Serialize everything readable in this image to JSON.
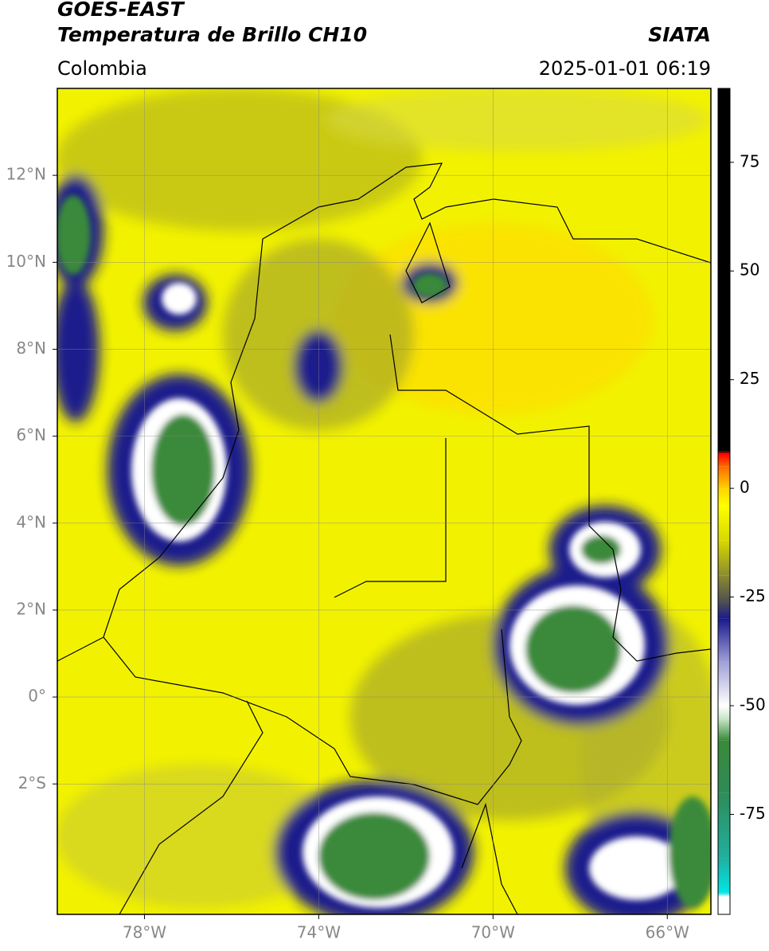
{
  "map": {
    "title": "GOES-EAST",
    "subtitle": "Temperatura de Brillo CH10",
    "source": "SIATA",
    "region": "Colombia",
    "datetime": "2025-01-01 06:19",
    "xlim": [
      -80,
      -65
    ],
    "ylim": [
      -5,
      14
    ],
    "xticks": [
      {
        "value": -78,
        "label": "78°W"
      },
      {
        "value": -74,
        "label": "74°W"
      },
      {
        "value": -70,
        "label": "70°W"
      },
      {
        "value": -66,
        "label": "66°W"
      }
    ],
    "yticks": [
      {
        "value": 12,
        "label": "12°N"
      },
      {
        "value": 10,
        "label": "10°N"
      },
      {
        "value": 8,
        "label": "8°N"
      },
      {
        "value": 6,
        "label": "6°N"
      },
      {
        "value": 4,
        "label": "4°N"
      },
      {
        "value": 2,
        "label": "2°N"
      },
      {
        "value": 0,
        "label": "0°"
      },
      {
        "value": -2,
        "label": "2°S"
      }
    ],
    "grid": true,
    "colorbar": {
      "lim": [
        -98,
        92
      ],
      "ticks": [
        75,
        50,
        25,
        0,
        -25,
        -50,
        -75
      ],
      "stops": [
        {
          "value": -98,
          "color": "#ffffff"
        },
        {
          "value": -94,
          "color": "#ffffff"
        },
        {
          "value": -93,
          "color": "#00e5e5"
        },
        {
          "value": -85,
          "color": "#20b0a0"
        },
        {
          "value": -70,
          "color": "#2e8b57"
        },
        {
          "value": -58,
          "color": "#3a8a3a"
        },
        {
          "value": -53,
          "color": "#c8e6c8"
        },
        {
          "value": -50,
          "color": "#ffffff"
        },
        {
          "value": -40,
          "color": "#a0a0d8"
        },
        {
          "value": -30,
          "color": "#1a1a8c"
        },
        {
          "value": -26,
          "color": "#505050"
        },
        {
          "value": -20,
          "color": "#8c8c30"
        },
        {
          "value": -12,
          "color": "#d8d800"
        },
        {
          "value": -4,
          "color": "#ffff00"
        },
        {
          "value": 0,
          "color": "#ffd200"
        },
        {
          "value": 5,
          "color": "#ff6a00"
        },
        {
          "value": 8,
          "color": "#ff0000"
        },
        {
          "value": 8.5,
          "color": "#000000"
        },
        {
          "value": 92,
          "color": "#000000"
        }
      ]
    }
  }
}
